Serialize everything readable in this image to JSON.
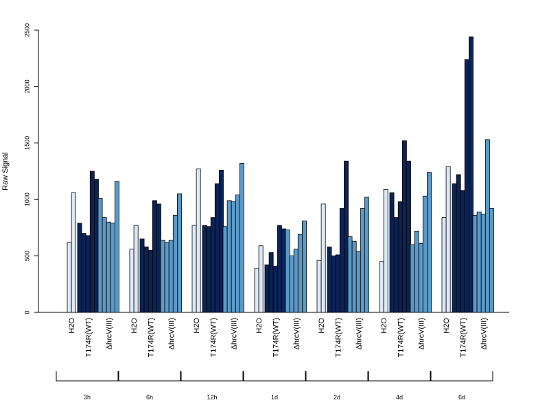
{
  "chart_data": {
    "type": "bar",
    "title": "",
    "xlabel": "",
    "ylabel": "Raw Signal",
    "ylim": [
      0,
      2500
    ],
    "yticks": [
      "0",
      "500",
      "1000",
      "1500",
      "2000",
      "2500"
    ],
    "grid": false,
    "legend": "none",
    "group_labels": [
      "H2O",
      "T174R(WT)",
      "ΔhrcV(III)"
    ],
    "group_colors": [
      "#dde9f6",
      "#0b2356",
      "#5b9ac8"
    ],
    "timepoints": [
      {
        "label": "3h",
        "groups": [
          [
            620,
            1060
          ],
          [
            790,
            700,
            680,
            1250,
            1180
          ],
          [
            1010,
            840,
            800,
            790,
            1160
          ]
        ]
      },
      {
        "label": "6h",
        "groups": [
          [
            560,
            770
          ],
          [
            650,
            580,
            550,
            990,
            960
          ],
          [
            640,
            620,
            640,
            860,
            1050
          ]
        ]
      },
      {
        "label": "12h",
        "groups": [
          [
            770,
            1270
          ],
          [
            770,
            760,
            840,
            1140,
            1260
          ],
          [
            760,
            990,
            980,
            1040,
            1320
          ]
        ]
      },
      {
        "label": "1d",
        "groups": [
          [
            390,
            590
          ],
          [
            420,
            530,
            410,
            770,
            740
          ],
          [
            730,
            500,
            560,
            690,
            810
          ]
        ]
      },
      {
        "label": "2d",
        "groups": [
          [
            460,
            960
          ],
          [
            580,
            500,
            510,
            920,
            1340
          ],
          [
            670,
            630,
            540,
            920,
            1020
          ]
        ]
      },
      {
        "label": "4d",
        "groups": [
          [
            450,
            1090
          ],
          [
            1060,
            840,
            980,
            1520,
            1340
          ],
          [
            600,
            720,
            610,
            1030,
            1240
          ]
        ]
      },
      {
        "label": "6d",
        "groups": [
          [
            840,
            1290
          ],
          [
            1140,
            1220,
            1080,
            2240,
            2440
          ],
          [
            860,
            890,
            870,
            1530,
            920
          ]
        ]
      }
    ]
  }
}
